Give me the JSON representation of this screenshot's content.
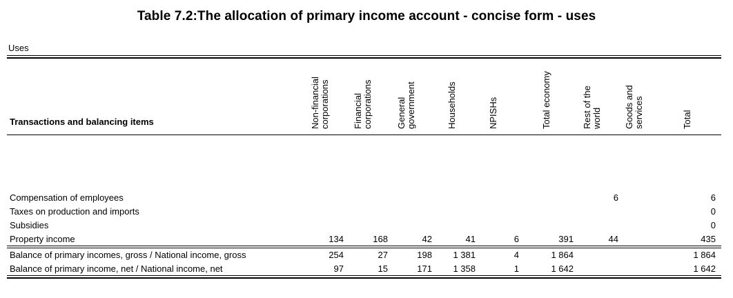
{
  "title": "Table 7.2:The allocation of primary income account - concise form - uses",
  "section_label": "Uses",
  "row_header": "Transactions and balancing items",
  "columns": [
    [
      "Non-financial",
      "corporations"
    ],
    [
      "Financial",
      "corporations"
    ],
    [
      "General",
      "government"
    ],
    [
      "Households"
    ],
    [
      "NPISHs"
    ],
    [
      "Total economy"
    ],
    [
      "Rest of the",
      "world"
    ],
    [
      "Goods and",
      "services"
    ],
    [
      "Total"
    ]
  ],
  "rows": [
    {
      "label": "Compensation of employees",
      "values": [
        "",
        "",
        "",
        "",
        "",
        "",
        "6",
        "",
        "6"
      ]
    },
    {
      "label": "Taxes on production and imports",
      "values": [
        "",
        "",
        "",
        "",
        "",
        "",
        "",
        "",
        "0"
      ]
    },
    {
      "label": "Subsidies",
      "values": [
        "",
        "",
        "",
        "",
        "",
        "",
        "",
        "",
        "0"
      ]
    },
    {
      "label": "Property income",
      "values": [
        "134",
        "168",
        "42",
        "41",
        "6",
        "391",
        "44",
        "",
        "435"
      ]
    },
    {
      "label": "Balance of primary incomes, gross / National income, gross",
      "values": [
        "254",
        "27",
        "198",
        "1 381",
        "4",
        "1 864",
        "",
        "",
        "1 864"
      ]
    },
    {
      "label": "Balance of primary income, net / National income, net",
      "values": [
        "97",
        "15",
        "171",
        "1 358",
        "1",
        "1 642",
        "",
        "",
        "1 642"
      ]
    }
  ]
}
